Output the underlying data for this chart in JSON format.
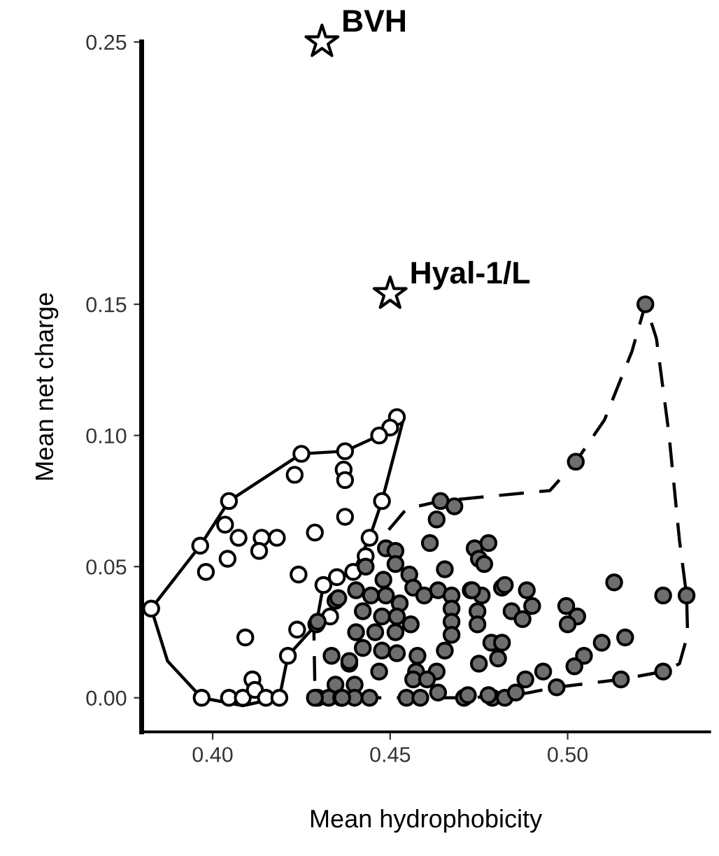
{
  "chart_data": {
    "type": "scatter",
    "xlabel": "Mean hydrophobicity",
    "ylabel": "Mean net charge",
    "xlim": [
      0.38,
      0.54
    ],
    "ylim": [
      -0.013,
      0.25
    ],
    "xticks": [
      {
        "value": 0.4,
        "label": "0.40"
      },
      {
        "value": 0.45,
        "label": "0.45"
      },
      {
        "value": 0.5,
        "label": "0.50"
      }
    ],
    "yticks": [
      {
        "value": 0,
        "label": "0.00"
      },
      0.05,
      {
        "value": 0.1,
        "label": "0.10"
      },
      0.15,
      0.25
    ],
    "grid": false,
    "legend": false,
    "marker": "circle",
    "series": [
      {
        "type": "line",
        "marker": "none",
        "color": "#000000",
        "line_style": "dashed",
        "x": [
          0.4496,
          0.4546,
          0.4642,
          0.4796,
          0.495,
          0.5023,
          0.5104,
          0.5181,
          0.5219,
          0.525,
          0.5285,
          0.5315,
          0.5335,
          0.5338,
          0.5315,
          0.5269,
          0.515,
          0.4969,
          0.4854,
          0.4719,
          0.4296,
          0.4288,
          0.4285
        ],
        "values": [
          0.064,
          0.072,
          0.075,
          0.077,
          0.079,
          0.09,
          0.106,
          0.132,
          0.15,
          0.137,
          0.101,
          0.06,
          0.039,
          0.024,
          0.013,
          0.01,
          0.007,
          0.004,
          0.001,
          0.0,
          0.0,
          0.004,
          0.027
        ]
      },
      {
        "type": "line",
        "marker": "none",
        "color": "#000000",
        "line_style": "solid",
        "x": [
          0.3827,
          0.3965,
          0.4046,
          0.425,
          0.4373,
          0.4469,
          0.4519,
          0.4535,
          0.4477,
          0.4442,
          0.4396,
          0.4312,
          0.4292,
          0.4212,
          0.4188
        ],
        "values": [
          0.034,
          0.058,
          0.075,
          0.093,
          0.094,
          0.1,
          0.107,
          0.105,
          0.075,
          0.061,
          0.048,
          0.043,
          0.028,
          0.016,
          0.0
        ]
      },
      {
        "type": "line",
        "marker": "none",
        "color": "#000000",
        "line_style": "solid",
        "x": [
          0.3827,
          0.3873,
          0.3969,
          0.4085,
          0.4188
        ],
        "values": [
          0.034,
          0.014,
          0.0,
          -0.003,
          0.0
        ]
      },
      {
        "type": "scatter",
        "color": "#ffffff",
        "x": [
          0.4519,
          0.45,
          0.4469,
          0.425,
          0.4373,
          0.4231,
          0.4369,
          0.4373,
          0.4046,
          0.4477,
          0.4373,
          0.4035,
          0.4073,
          0.4138,
          0.4181,
          0.4288,
          0.3965,
          0.4131,
          0.4042,
          0.3981,
          0.4242,
          0.4442,
          0.4431,
          0.4396,
          0.435,
          0.4312,
          0.3827,
          0.4331,
          0.4292,
          0.4238,
          0.4092,
          0.4212,
          0.4112,
          0.3969,
          0.4046,
          0.4085,
          0.4119,
          0.415,
          0.4188
        ],
        "values": [
          0.107,
          0.103,
          0.1,
          0.093,
          0.094,
          0.085,
          0.087,
          0.083,
          0.075,
          0.075,
          0.069,
          0.066,
          0.061,
          0.061,
          0.061,
          0.063,
          0.058,
          0.056,
          0.053,
          0.048,
          0.047,
          0.061,
          0.054,
          0.048,
          0.046,
          0.043,
          0.034,
          0.031,
          0.028,
          0.026,
          0.023,
          0.016,
          0.007,
          0.0,
          0.0,
          0.0,
          0.003,
          0.0,
          0.0
        ]
      },
      {
        "type": "scatter",
        "color": "#6e6e6e",
        "x": [
          0.4642,
          0.4681,
          0.4631,
          0.4612,
          0.4738,
          0.475,
          0.4765,
          0.4654,
          0.4488,
          0.4515,
          0.4515,
          0.4554,
          0.4565,
          0.4596,
          0.4635,
          0.4673,
          0.4727,
          0.4758,
          0.4815,
          0.4431,
          0.4481,
          0.4404,
          0.4446,
          0.4488,
          0.4346,
          0.4527,
          0.4673,
          0.4746,
          0.4296,
          0.4477,
          0.4519,
          0.4558,
          0.4423,
          0.4673,
          0.4746,
          0.4404,
          0.4458,
          0.4515,
          0.4673,
          0.4785,
          0.4815,
          0.4335,
          0.4423,
          0.4477,
          0.4519,
          0.4577,
          0.4654,
          0.4385,
          0.4469,
          0.4573,
          0.4631,
          0.475,
          0.4346,
          0.44,
          0.4565,
          0.4604,
          0.4296,
          0.4327,
          0.4362,
          0.44,
          0.4442,
          0.4546,
          0.4585,
          0.4635,
          0.4708,
          0.4788,
          0.4823,
          0.5219,
          0.5023,
          0.4777,
          0.4731,
          0.4823,
          0.4885,
          0.49,
          0.4842,
          0.4873,
          0.4996,
          0.5027,
          0.5,
          0.5131,
          0.5269,
          0.5335,
          0.4804,
          0.5046,
          0.5019,
          0.5096,
          0.5162,
          0.4881,
          0.4931,
          0.4969,
          0.515,
          0.5269,
          0.4719,
          0.4777,
          0.4854,
          0.4354,
          0.4385,
          0.4288,
          0.4365
        ],
        "values": [
          0.075,
          0.073,
          0.068,
          0.059,
          0.057,
          0.053,
          0.051,
          0.049,
          0.057,
          0.056,
          0.051,
          0.047,
          0.042,
          0.039,
          0.041,
          0.039,
          0.041,
          0.039,
          0.042,
          0.05,
          0.045,
          0.041,
          0.039,
          0.039,
          0.037,
          0.036,
          0.034,
          0.033,
          0.029,
          0.031,
          0.031,
          0.028,
          0.033,
          0.029,
          0.028,
          0.025,
          0.025,
          0.025,
          0.024,
          0.021,
          0.021,
          0.016,
          0.019,
          0.018,
          0.017,
          0.016,
          0.018,
          0.013,
          0.01,
          0.01,
          0.01,
          0.013,
          0.005,
          0.005,
          0.007,
          0.007,
          0.0,
          0.0,
          0.0,
          0.0,
          0.0,
          0.0,
          0.0,
          0.002,
          0.0,
          0.0,
          0.0,
          0.15,
          0.09,
          0.059,
          0.041,
          0.043,
          0.041,
          0.035,
          0.033,
          0.03,
          0.035,
          0.031,
          0.028,
          0.044,
          0.039,
          0.039,
          0.015,
          0.016,
          0.012,
          0.021,
          0.023,
          0.007,
          0.01,
          0.004,
          0.007,
          0.01,
          0.001,
          0.001,
          0.002,
          0.038,
          0.014,
          0.0,
          0.0
        ]
      },
      {
        "type": "scatter",
        "name": "BVH",
        "marker": "star",
        "color": "#ffffff",
        "x": [
          0.4308
        ],
        "values": [
          0.25
        ]
      },
      {
        "type": "scatter",
        "name": "Hyal-1/L",
        "marker": "star",
        "color": "#ffffff",
        "x": [
          0.45
        ],
        "values": [
          0.154
        ]
      }
    ]
  }
}
